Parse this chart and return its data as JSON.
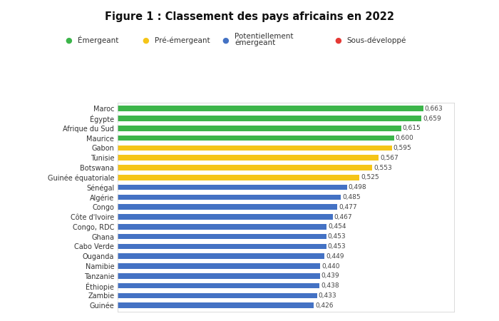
{
  "title": "Figure 1 : Classement des pays africains en 2022",
  "countries": [
    "Maroc",
    "Égypte",
    "Afrique du Sud",
    "Maurice",
    "Gabon",
    "Tunisie",
    "Botswana",
    "Guinée équatoriale",
    "Sénégal",
    "Algérie",
    "Congo",
    "Côte d'Ivoire",
    "Congo, RDC",
    "Ghana",
    "Cabo Verde",
    "Ouganda",
    "Namibie",
    "Tanzanie",
    "Éthiopie",
    "Zambie",
    "Guinée"
  ],
  "values": [
    0.663,
    0.659,
    0.615,
    0.6,
    0.595,
    0.567,
    0.553,
    0.525,
    0.498,
    0.485,
    0.477,
    0.467,
    0.454,
    0.453,
    0.453,
    0.449,
    0.44,
    0.439,
    0.438,
    0.433,
    0.426
  ],
  "colors": [
    "#3cb54a",
    "#3cb54a",
    "#3cb54a",
    "#3cb54a",
    "#f5c518",
    "#f5c518",
    "#f5c518",
    "#f5c518",
    "#4472C4",
    "#4472C4",
    "#4472C4",
    "#4472C4",
    "#4472C4",
    "#4472C4",
    "#4472C4",
    "#4472C4",
    "#4472C4",
    "#4472C4",
    "#4472C4",
    "#4472C4",
    "#4472C4"
  ],
  "legend_labels": [
    "Émergeant",
    "Pré-émergeant",
    "Potentiellement\némergeant",
    "Sous-développé"
  ],
  "legend_colors": [
    "#3cb54a",
    "#f5c518",
    "#4472C4",
    "#e53935"
  ],
  "background_color": "#ffffff",
  "chart_bg": "#ffffff",
  "bar_height": 0.55,
  "xlim": [
    0,
    0.73
  ],
  "value_fontsize": 6.5,
  "label_fontsize": 7,
  "title_fontsize": 10.5
}
